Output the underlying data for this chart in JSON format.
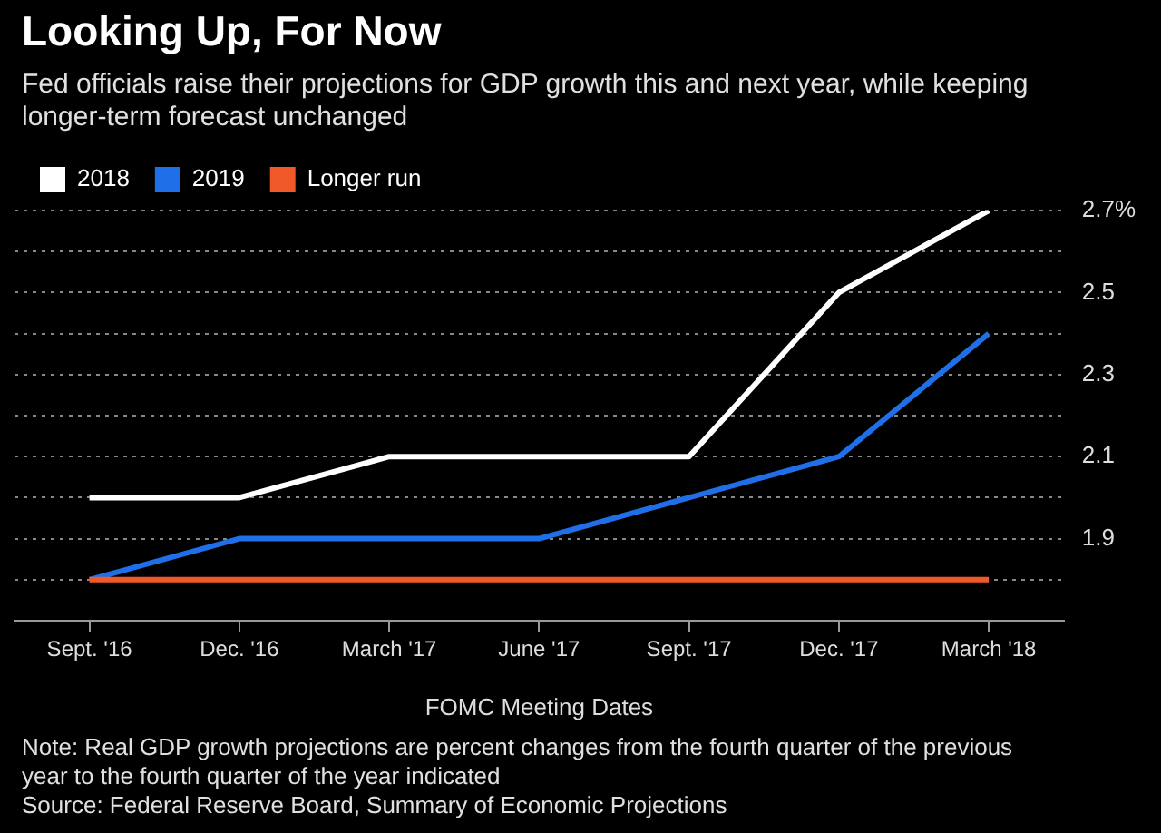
{
  "chart_data": {
    "type": "line",
    "title": "Looking Up, For Now",
    "subtitle": "Fed officials raise their projections for GDP growth this and next year, while keeping longer-term forecast unchanged",
    "xlabel": "FOMC Meeting Dates",
    "categories": [
      "Sept. '16",
      "Dec. '16",
      "March '17",
      "June '17",
      "Sept. '17",
      "Dec. '17",
      "March '18"
    ],
    "series": [
      {
        "name": "2018",
        "color": "#ffffff",
        "values": [
          2.0,
          2.0,
          2.1,
          2.1,
          2.1,
          2.5,
          2.7
        ]
      },
      {
        "name": "2019",
        "color": "#1f6fe8",
        "values": [
          1.8,
          1.9,
          1.9,
          1.9,
          2.0,
          2.1,
          2.4
        ]
      },
      {
        "name": "Longer run",
        "color": "#f05a2a",
        "values": [
          1.8,
          1.8,
          1.8,
          1.8,
          1.8,
          1.8,
          1.8
        ]
      }
    ],
    "ylim": [
      1.7,
      2.7
    ],
    "yticks": [
      {
        "value": 1.8,
        "label": null
      },
      1.9,
      {
        "value": 2.0,
        "label": null
      },
      2.1,
      {
        "value": 2.2,
        "label": null
      },
      2.3,
      {
        "value": 2.4,
        "label": null
      },
      2.5,
      {
        "value": 2.6,
        "label": null
      },
      {
        "value": 2.7,
        "label": "2.7%"
      }
    ],
    "grid": "y",
    "legend": "top left",
    "marker": "none",
    "line_style": "solid",
    "annotations": [
      "Note: Real GDP growth projections are percent changes from the fourth quarter of the previous year to the fourth quarter of the year indicated",
      "Source: Federal Reserve Board, Summary of Economic Projections"
    ]
  }
}
